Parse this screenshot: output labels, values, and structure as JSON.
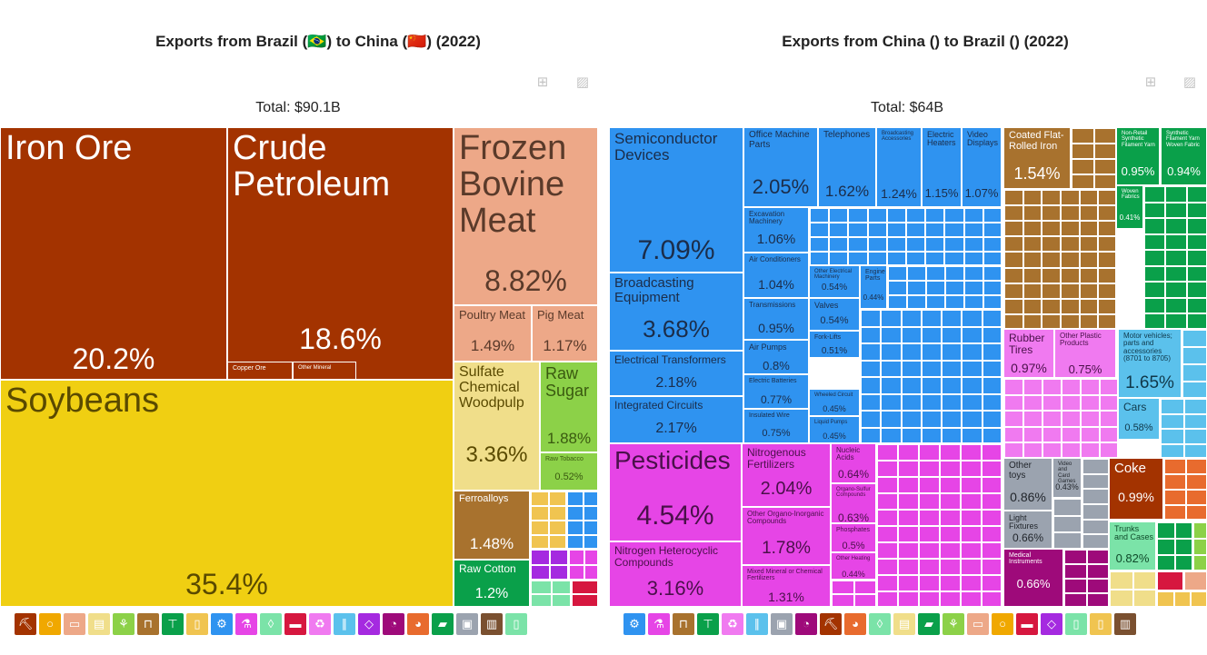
{
  "chart_data": [
    {
      "type": "treemap",
      "title": "Exports from Brazil (🇧🇷) to China (🇨🇳) (2022)",
      "total_label": "Total: $90.1B",
      "series": [
        {
          "name": "Soybeans",
          "value": 35.4,
          "color": "#f0cf12"
        },
        {
          "name": "Iron Ore",
          "value": 20.2,
          "color": "#a33300"
        },
        {
          "name": "Crude Petroleum",
          "value": 18.6,
          "color": "#a33300"
        },
        {
          "name": "Frozen Bovine Meat",
          "value": 8.82,
          "color": "#eda888"
        },
        {
          "name": "Sulfate Chemical Woodpulp",
          "value": 3.36,
          "color": "#f0de8a"
        },
        {
          "name": "Raw Sugar",
          "value": 1.88,
          "color": "#8cd148"
        },
        {
          "name": "Poultry Meat",
          "value": 1.49,
          "color": "#eda888"
        },
        {
          "name": "Ferroalloys",
          "value": 1.48,
          "color": "#a8722e"
        },
        {
          "name": "Raw Cotton",
          "value": 1.2,
          "color": "#0aa04a"
        },
        {
          "name": "Pig Meat",
          "value": 1.17,
          "color": "#eda888"
        },
        {
          "name": "Raw Tobacco",
          "value": 0.52,
          "color": "#8cd148"
        },
        {
          "name": "Copper Ore",
          "value": null,
          "color": "#a33300"
        },
        {
          "name": "Other Mineral",
          "value": null,
          "color": "#a33300"
        }
      ]
    },
    {
      "type": "treemap",
      "title": "Exports from China () to Brazil () (2022)",
      "total_label": "Total: $64B",
      "series": [
        {
          "name": "Semiconductor Devices",
          "value": 7.09,
          "color": "#2f93f0"
        },
        {
          "name": "Pesticides",
          "value": 4.54,
          "color": "#e645e6"
        },
        {
          "name": "Broadcasting Equipment",
          "value": 3.68,
          "color": "#2f93f0"
        },
        {
          "name": "Nitrogen Heterocyclic Compounds",
          "value": 3.16,
          "color": "#e645e6"
        },
        {
          "name": "Electrical Transformers",
          "value": 2.18,
          "color": "#2f93f0"
        },
        {
          "name": "Integrated Circuits",
          "value": 2.17,
          "color": "#2f93f0"
        },
        {
          "name": "Office Machine Parts",
          "value": 2.05,
          "color": "#2f93f0"
        },
        {
          "name": "Nitrogenous Fertilizers",
          "value": 2.04,
          "color": "#e645e6"
        },
        {
          "name": "Other Organo-Inorganic Compounds",
          "value": 1.78,
          "color": "#e645e6"
        },
        {
          "name": "Motor vehicles; parts and accessories (8701 to 8705)",
          "value": 1.65,
          "color": "#5bc1ec"
        },
        {
          "name": "Telephones",
          "value": 1.62,
          "color": "#2f93f0"
        },
        {
          "name": "Coated Flat-Rolled Iron",
          "value": 1.54,
          "color": "#a8722e"
        },
        {
          "name": "Mixed Mineral or Chemical Fertilizers",
          "value": 1.31,
          "color": "#e645e6"
        },
        {
          "name": "Broadcasting Accessories",
          "value": 1.24,
          "color": "#2f93f0"
        },
        {
          "name": "Electric Heaters",
          "value": 1.15,
          "color": "#2f93f0"
        },
        {
          "name": "Video Displays",
          "value": 1.07,
          "color": "#2f93f0"
        },
        {
          "name": "Excavation Machinery",
          "value": 1.06,
          "color": "#2f93f0"
        },
        {
          "name": "Air Conditioners",
          "value": 1.04,
          "color": "#2f93f0"
        },
        {
          "name": "Coke",
          "value": 0.99,
          "color": "#a33300"
        },
        {
          "name": "Rubber Tires",
          "value": 0.97,
          "color": "#f07af0"
        },
        {
          "name": "Transmissions",
          "value": 0.95,
          "color": "#2f93f0"
        },
        {
          "name": "Non-Retail Synthetic Filament Yarn",
          "value": 0.95,
          "color": "#0aa04a"
        },
        {
          "name": "Synthetic Filament Yarn Woven Fabric",
          "value": 0.94,
          "color": "#0aa04a"
        },
        {
          "name": "Other toys",
          "value": 0.86,
          "color": "#9ba3af"
        },
        {
          "name": "Trunks and Cases",
          "value": 0.82,
          "color": "#7be3a8"
        },
        {
          "name": "Air Pumps",
          "value": 0.8,
          "color": "#2f93f0"
        },
        {
          "name": "Electric Batteries",
          "value": 0.77,
          "color": "#2f93f0"
        },
        {
          "name": "Other Plastic Products",
          "value": 0.75,
          "color": "#f07af0"
        },
        {
          "name": "Insulated Wire",
          "value": 0.75,
          "color": "#2f93f0"
        },
        {
          "name": "Light Fixtures",
          "value": 0.66,
          "color": "#9ba3af"
        },
        {
          "name": "Medical Instruments",
          "value": 0.66,
          "color": "#9e0a7a"
        },
        {
          "name": "Nucleic Acids",
          "value": 0.64,
          "color": "#e645e6"
        },
        {
          "name": "Organo-Sulfur Compounds",
          "value": 0.63,
          "color": "#e645e6"
        },
        {
          "name": "Cars",
          "value": 0.58,
          "color": "#5bc1ec"
        },
        {
          "name": "Valves",
          "value": 0.54,
          "color": "#2f93f0"
        },
        {
          "name": "Other Electrical Machinery",
          "value": 0.54,
          "color": "#2f93f0"
        },
        {
          "name": "Fork-Lifts",
          "value": 0.51,
          "color": "#2f93f0"
        },
        {
          "name": "Phosphates",
          "value": 0.5,
          "color": "#e645e6"
        },
        {
          "name": "Wheeled Circuit",
          "value": 0.45,
          "color": "#2f93f0"
        },
        {
          "name": "Liquid Pumps",
          "value": 0.45,
          "color": "#2f93f0"
        },
        {
          "name": "Other Heating",
          "value": 0.44,
          "color": "#e645e6"
        },
        {
          "name": "Engine Parts",
          "value": 0.44,
          "color": "#2f93f0"
        },
        {
          "name": "Video and Card Games",
          "value": 0.43,
          "color": "#9ba3af"
        },
        {
          "name": "Woven Fabrics",
          "value": 0.41,
          "color": "#0aa04a"
        }
      ]
    }
  ],
  "toolbar": {
    "table_icon": "table-icon",
    "image_icon": "image-icon"
  },
  "left_icons": [
    {
      "name": "mineral-icon",
      "color": "#a33300",
      "glyph": "⛏"
    },
    {
      "name": "fruit-icon",
      "color": "#f0a800",
      "glyph": "○"
    },
    {
      "name": "animal-icon",
      "color": "#eda888",
      "glyph": "▭"
    },
    {
      "name": "paper-icon",
      "color": "#f0de8a",
      "glyph": "▤"
    },
    {
      "name": "vegetable-icon",
      "color": "#8cd148",
      "glyph": "⚘"
    },
    {
      "name": "metal-icon",
      "color": "#a8722e",
      "glyph": "⊓"
    },
    {
      "name": "textile-icon",
      "color": "#0aa04a",
      "glyph": "⊤"
    },
    {
      "name": "food-icon",
      "color": "#f0c450",
      "glyph": "▯"
    },
    {
      "name": "machine-icon",
      "color": "#2f93f0",
      "glyph": "⚙"
    },
    {
      "name": "chemical-icon",
      "color": "#e645e6",
      "glyph": "⚗"
    },
    {
      "name": "animal-hide-icon",
      "color": "#7be3a8",
      "glyph": "◊"
    },
    {
      "name": "plastic-icon",
      "color": "#d6173f",
      "glyph": "▬"
    },
    {
      "name": "recycle-icon",
      "color": "#f07af0",
      "glyph": "♻"
    },
    {
      "name": "transport-icon",
      "color": "#5bc1ec",
      "glyph": "∥"
    },
    {
      "name": "precious-icon",
      "color": "#a52ae0",
      "glyph": "◇"
    },
    {
      "name": "instrument-icon",
      "color": "#9e0a7a",
      "glyph": "◔"
    },
    {
      "name": "stone-icon",
      "color": "#e86b2e",
      "glyph": "◕"
    },
    {
      "name": "footwear-icon",
      "color": "#0aa04a",
      "glyph": "▰"
    },
    {
      "name": "misc-icon",
      "color": "#9ba3af",
      "glyph": "▣"
    },
    {
      "name": "art-icon",
      "color": "#7a5030",
      "glyph": "▥"
    },
    {
      "name": "weapon-icon",
      "color": "#7be3a8",
      "glyph": "▯"
    }
  ],
  "right_icons": [
    {
      "name": "machine-icon",
      "color": "#2f93f0",
      "glyph": "⚙"
    },
    {
      "name": "chemical-icon",
      "color": "#e645e6",
      "glyph": "⚗"
    },
    {
      "name": "metal-icon",
      "color": "#a8722e",
      "glyph": "⊓"
    },
    {
      "name": "textile-icon",
      "color": "#0aa04a",
      "glyph": "⊤"
    },
    {
      "name": "recycle-icon",
      "color": "#f07af0",
      "glyph": "♻"
    },
    {
      "name": "transport-icon",
      "color": "#5bc1ec",
      "glyph": "∥"
    },
    {
      "name": "misc-icon",
      "color": "#9ba3af",
      "glyph": "▣"
    },
    {
      "name": "instrument-icon",
      "color": "#9e0a7a",
      "glyph": "◔"
    },
    {
      "name": "mineral-icon",
      "color": "#a33300",
      "glyph": "⛏"
    },
    {
      "name": "stone-icon",
      "color": "#e86b2e",
      "glyph": "◕"
    },
    {
      "name": "animal-hide-icon",
      "color": "#7be3a8",
      "glyph": "◊"
    },
    {
      "name": "paper-icon",
      "color": "#f0de8a",
      "glyph": "▤"
    },
    {
      "name": "footwear-icon",
      "color": "#0aa04a",
      "glyph": "▰"
    },
    {
      "name": "vegetable-icon",
      "color": "#8cd148",
      "glyph": "⚘"
    },
    {
      "name": "animal-icon",
      "color": "#eda888",
      "glyph": "▭"
    },
    {
      "name": "fruit-icon",
      "color": "#f0a800",
      "glyph": "○"
    },
    {
      "name": "plastic-icon",
      "color": "#d6173f",
      "glyph": "▬"
    },
    {
      "name": "precious-icon",
      "color": "#a52ae0",
      "glyph": "◇"
    },
    {
      "name": "weapon-icon",
      "color": "#7be3a8",
      "glyph": "▯"
    },
    {
      "name": "food-icon",
      "color": "#f0c450",
      "glyph": "▯"
    },
    {
      "name": "art-icon",
      "color": "#7a5030",
      "glyph": "▥"
    }
  ]
}
